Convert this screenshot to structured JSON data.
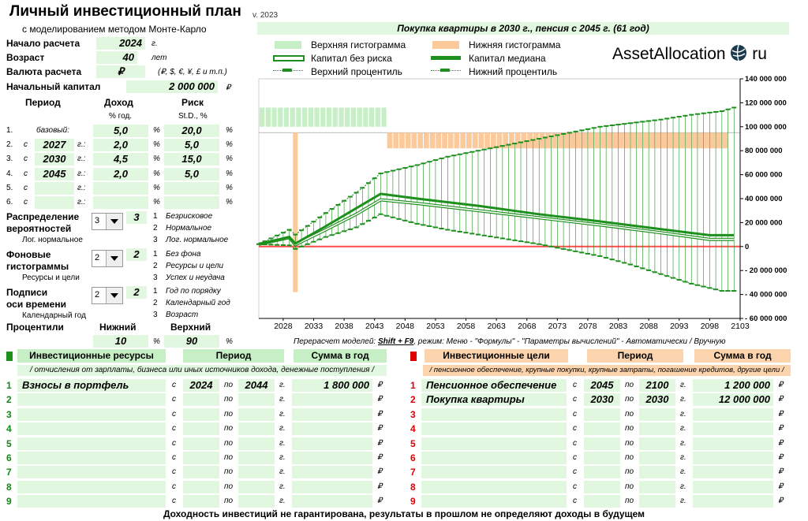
{
  "title": "Личный инвестиционный план",
  "subtitle": "с моделированием методом Монте-Карло",
  "version": "v. 2023",
  "chart_title": "Покупка квартиры в 2030 г., пенсия с 2045 г. (61 год)",
  "fields": {
    "start_label": "Начало расчета",
    "start_value": "2024",
    "start_unit": "г.",
    "age_label": "Возраст",
    "age_value": "40",
    "age_unit": "лет",
    "currency_label": "Валюта расчета",
    "currency_value": "₽",
    "currency_note": "(₽, $, €, ¥, £ и т.п.)",
    "capital_label": "Начальный капитал",
    "capital_value": "2 000 000",
    "capital_unit": "₽"
  },
  "periods": {
    "col_period": "Период",
    "col_income": "Доход",
    "col_risk": "Риск",
    "unit_income": "% год.",
    "unit_risk": "St.D., %",
    "rows": [
      {
        "n": "1.",
        "pre": "",
        "year": "базовый:",
        "suffix": "",
        "income": "5,0",
        "risk": "20,0"
      },
      {
        "n": "2.",
        "pre": "с",
        "year": "2027",
        "suffix": "г.:",
        "income": "2,0",
        "risk": "5,0"
      },
      {
        "n": "3.",
        "pre": "с",
        "year": "2030",
        "suffix": "г.:",
        "income": "4,5",
        "risk": "15,0"
      },
      {
        "n": "4.",
        "pre": "с",
        "year": "2045",
        "suffix": "г.:",
        "income": "2,0",
        "risk": "5,0"
      },
      {
        "n": "5.",
        "pre": "с",
        "year": "",
        "suffix": "г.:",
        "income": "",
        "risk": ""
      },
      {
        "n": "6.",
        "pre": "с",
        "year": "",
        "suffix": "г.:",
        "income": "",
        "risk": ""
      }
    ],
    "pct": "%"
  },
  "options": {
    "dist_label_1": "Распределение",
    "dist_label_2": "вероятностей",
    "dist_value": "3",
    "dist_selected": "3",
    "dist_current": "Лог. нормальное",
    "dist_options": [
      "Безрисковое",
      "Нормальное",
      "Лог. нормальное"
    ],
    "bg_label_1": "Фоновые",
    "bg_label_2": "гистограммы",
    "bg_value": "2",
    "bg_selected": "2",
    "bg_current": "Ресурсы и цели",
    "bg_options": [
      "Без фона",
      "Ресурсы и цели",
      "Успех и неудача"
    ],
    "axis_label_1": "Подписи",
    "axis_label_2": "оси времени",
    "axis_value": "2",
    "axis_selected": "2",
    "axis_current": "Календарный год",
    "axis_options": [
      "Год по порядку",
      "Календарный год",
      "Возраст"
    ],
    "nums": [
      "1",
      "2",
      "3"
    ]
  },
  "percentiles": {
    "label": "Процентили",
    "lower_label": "Нижний",
    "upper_label": "Верхний",
    "lower": "10",
    "upper": "90",
    "unit": "%"
  },
  "legend": {
    "upper_hist": "Верхняя гистограмма",
    "lower_hist": "Нижняя гистограмма",
    "riskless": "Капитал без риска",
    "median": "Капитал медиана",
    "upper_pct": "Верхний процентиль",
    "lower_pct": "Нижний процентиль"
  },
  "brand": {
    "name": "AssetAllocation",
    "tld": "ru"
  },
  "recalc": {
    "pre": "Перерасчет моделей: ",
    "key": "Shift + F9",
    "post": ", режим: Меню - \"Формулы\" - \"Параметры вычислений\" - Автоматически / Вручную"
  },
  "resources": {
    "title": "Инвестиционные ресурсы",
    "col_period": "Период",
    "col_sum": "Сумма в год",
    "note": "/ отчисления от зарплаты, бизнеса или иных источников дохода, денежные поступления /",
    "from": "с",
    "to": "по",
    "yr": "г.",
    "cur": "₽",
    "rows": [
      {
        "n": "1",
        "name": "Взносы в портфель",
        "from": "2024",
        "to": "2044",
        "sum": "1 800 000"
      },
      {
        "n": "2",
        "name": "",
        "from": "",
        "to": "",
        "sum": ""
      },
      {
        "n": "3",
        "name": "",
        "from": "",
        "to": "",
        "sum": ""
      },
      {
        "n": "4",
        "name": "",
        "from": "",
        "to": "",
        "sum": ""
      },
      {
        "n": "5",
        "name": "",
        "from": "",
        "to": "",
        "sum": ""
      },
      {
        "n": "6",
        "name": "",
        "from": "",
        "to": "",
        "sum": ""
      },
      {
        "n": "7",
        "name": "",
        "from": "",
        "to": "",
        "sum": ""
      },
      {
        "n": "8",
        "name": "",
        "from": "",
        "to": "",
        "sum": ""
      },
      {
        "n": "9",
        "name": "",
        "from": "",
        "to": "",
        "sum": ""
      }
    ]
  },
  "goals": {
    "title": "Инвестиционные цели",
    "col_period": "Период",
    "col_sum": "Сумма в год",
    "note": "/ пенсионное обеспечение, крупные покупки, крупные затраты, погашение кредитов, другие цели /",
    "from": "с",
    "to": "по",
    "yr": "г.",
    "cur": "₽",
    "rows": [
      {
        "n": "1",
        "name": "Пенсионное обеспечение",
        "from": "2045",
        "to": "2100",
        "sum": "1 200 000"
      },
      {
        "n": "2",
        "name": "Покупка квартиры",
        "from": "2030",
        "to": "2030",
        "sum": "12 000 000"
      },
      {
        "n": "3",
        "name": "",
        "from": "",
        "to": "",
        "sum": ""
      },
      {
        "n": "4",
        "name": "",
        "from": "",
        "to": "",
        "sum": ""
      },
      {
        "n": "5",
        "name": "",
        "from": "",
        "to": "",
        "sum": ""
      },
      {
        "n": "6",
        "name": "",
        "from": "",
        "to": "",
        "sum": ""
      },
      {
        "n": "7",
        "name": "",
        "from": "",
        "to": "",
        "sum": ""
      },
      {
        "n": "8",
        "name": "",
        "from": "",
        "to": "",
        "sum": ""
      },
      {
        "n": "9",
        "name": "",
        "from": "",
        "to": "",
        "sum": ""
      }
    ]
  },
  "disclaimer": "Доходность инвестиций не гарантирована, результаты в прошлом не определяют доходы в будущем",
  "chart_data": {
    "type": "line",
    "title": "Покупка квартиры в 2030 г., пенсия с 2045 г. (61 год)",
    "x_ticks": [
      "2028",
      "2033",
      "2038",
      "2043",
      "2048",
      "2053",
      "2058",
      "2063",
      "2068",
      "2073",
      "2078",
      "2083",
      "2088",
      "2093",
      "2098",
      "2103"
    ],
    "y_ticks": [
      "140 000 000",
      "120 000 000",
      "100 000 000",
      "80 000 000",
      "60 000 000",
      "40 000 000",
      "20 000 000",
      "0",
      "- 20 000 000",
      "- 40 000 000",
      "- 60 000 000"
    ],
    "ylim": [
      -60000000,
      140000000
    ],
    "xlim": [
      2024,
      2103
    ],
    "colors": {
      "upper_hist": "#c6efc5",
      "lower_hist": "#fbc99a",
      "line": "#1d8f1d",
      "zero": "#ff4d4d"
    },
    "series": [
      {
        "name": "Капитал медиана",
        "points": [
          [
            2024,
            2000000
          ],
          [
            2029,
            8000000
          ],
          [
            2030,
            2500000
          ],
          [
            2035,
            17000000
          ],
          [
            2040,
            32000000
          ],
          [
            2044,
            44000000
          ],
          [
            2050,
            40000000
          ],
          [
            2060,
            34000000
          ],
          [
            2070,
            27000000
          ],
          [
            2080,
            21000000
          ],
          [
            2090,
            14500000
          ],
          [
            2098,
            9500000
          ],
          [
            2102,
            9500000
          ]
        ]
      },
      {
        "name": "Капитал без риска",
        "points": [
          [
            2024,
            2000000
          ],
          [
            2029,
            7500000
          ],
          [
            2030,
            1500000
          ],
          [
            2035,
            14000000
          ],
          [
            2040,
            27000000
          ],
          [
            2044,
            39000000
          ],
          [
            2050,
            36000000
          ],
          [
            2060,
            30000000
          ],
          [
            2070,
            24000000
          ],
          [
            2080,
            18000000
          ],
          [
            2090,
            11500000
          ],
          [
            2098,
            6000000
          ],
          [
            2102,
            6000000
          ]
        ]
      },
      {
        "name": "Верхний процентиль",
        "points": [
          [
            2024,
            2000000
          ],
          [
            2029,
            14000000
          ],
          [
            2030,
            10000000
          ],
          [
            2035,
            28000000
          ],
          [
            2040,
            45000000
          ],
          [
            2044,
            61000000
          ],
          [
            2050,
            68000000
          ],
          [
            2055,
            75000000
          ],
          [
            2060,
            80000000
          ],
          [
            2065,
            85000000
          ],
          [
            2070,
            90000000
          ],
          [
            2075,
            95000000
          ],
          [
            2080,
            100000000
          ],
          [
            2085,
            103000000
          ],
          [
            2090,
            106000000
          ],
          [
            2095,
            110000000
          ],
          [
            2100,
            113000000
          ],
          [
            2102,
            116000000
          ]
        ]
      },
      {
        "name": "Нижний процентиль",
        "points": [
          [
            2024,
            2000000
          ],
          [
            2029,
            1000000
          ],
          [
            2030,
            -2000000
          ],
          [
            2035,
            8000000
          ],
          [
            2040,
            16000000
          ],
          [
            2044,
            27000000
          ],
          [
            2050,
            19000000
          ],
          [
            2055,
            14000000
          ],
          [
            2060,
            10000000
          ],
          [
            2065,
            6000000
          ],
          [
            2070,
            2000000
          ],
          [
            2075,
            -3000000
          ],
          [
            2080,
            -8000000
          ],
          [
            2085,
            -15000000
          ],
          [
            2090,
            -23000000
          ],
          [
            2095,
            -31000000
          ],
          [
            2100,
            -37000000
          ],
          [
            2102,
            -37000000
          ]
        ]
      }
    ]
  }
}
